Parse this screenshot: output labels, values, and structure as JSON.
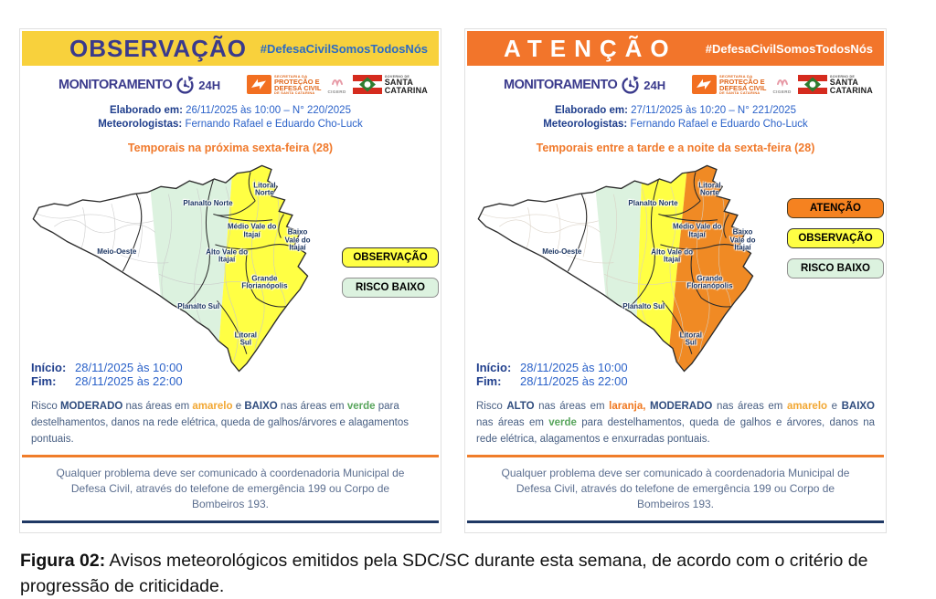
{
  "caption": {
    "label": "Figura 02:",
    "text": " Avisos meteorológicos emitidos pela SDC/SC durante esta semana, de acordo com o critério de progressão de criticidade."
  },
  "shared": {
    "hashtag": "#DefesaCivilSomosTodosNós",
    "monitoring": {
      "word": "MONITORAMENTO",
      "hours": "24H"
    },
    "logos": {
      "defesa_civil": {
        "line1": "SECRETARIA DA",
        "line2": "PROTEÇÃO E",
        "line3": "DEFESA CIVIL",
        "line4": "DE SANTA CATARINA"
      },
      "cigerd": "CIGERD",
      "governo": {
        "line1": "GOVERNO DE",
        "line2": "SANTA",
        "line3": "CATARINA"
      }
    },
    "labels": {
      "elaborado": "Elaborado em:",
      "meteorologistas": "Meteorologistas:",
      "inicio": "Início:",
      "fim": "Fim:"
    },
    "meteorologists": "Fernando Rafael e Eduardo Cho-Luck",
    "inicio_value": "28/11/2025 às 10:00",
    "fim_value": "28/11/2025 às 22:00",
    "contact": "Qualquer problema deve ser comunicado à coordenadoria Municipal de Defesa Civil, através do telefone de emergência 199 ou Corpo de Bombeiros 193.",
    "map_labels": {
      "planalto_norte": "Planalto Norte",
      "litoral_norte": "Litoral Norte",
      "medio_vale": "Médio Vale do Itajaí",
      "baixo_vale": "Baixo Vale do Itajaí",
      "alto_vale": "Alto Vale do Itajaí",
      "meio_oeste": "Meio-Oeste",
      "grande_florianopolis": "Grande Florianópolis",
      "planalto_sul": "Planalto Sul",
      "litoral_sul": "Litoral Sul"
    }
  },
  "panels": [
    {
      "title": "OBSERVAÇÃO",
      "elaborado_value": "26/11/2025 às 10:00 – N° 220/2025",
      "event_title": "Temporais na próxima sexta-feira (28)",
      "legend": [
        "OBSERVAÇÃO",
        "RISCO BAIXO"
      ],
      "risk_segments": [
        {
          "t": "Risco ",
          "c": "n"
        },
        {
          "t": "MODERADO",
          "c": "b"
        },
        {
          "t": " nas áreas em ",
          "c": "n"
        },
        {
          "t": "amarelo",
          "c": "yellow"
        },
        {
          "t": " e ",
          "c": "n"
        },
        {
          "t": "BAIXO",
          "c": "b"
        },
        {
          "t": " nas áreas em ",
          "c": "n"
        },
        {
          "t": "verde",
          "c": "green"
        },
        {
          "t": " para destelhamentos, danos na rede elétrica, queda de galhos/árvores e alagamentos pontuais.",
          "c": "n"
        }
      ]
    },
    {
      "title": "ATENÇÃO",
      "elaborado_value": "27/11/2025 às 10:20 – N° 221/2025",
      "event_title": "Temporais entre a tarde e a noite da sexta-feira (28)",
      "legend": [
        "ATENÇÃO",
        "OBSERVAÇÃO",
        "RISCO BAIXO"
      ],
      "risk_segments": [
        {
          "t": "Risco ",
          "c": "n"
        },
        {
          "t": "ALTO",
          "c": "b"
        },
        {
          "t": " nas áreas em ",
          "c": "n"
        },
        {
          "t": "laranja,",
          "c": "orange"
        },
        {
          "t": " ",
          "c": "n"
        },
        {
          "t": "MODERADO",
          "c": "b"
        },
        {
          "t": " nas áreas em ",
          "c": "n"
        },
        {
          "t": "amarelo",
          "c": "yellow"
        },
        {
          "t": " e ",
          "c": "n"
        },
        {
          "t": "BAIXO",
          "c": "b"
        },
        {
          "t": " nas áreas em ",
          "c": "n"
        },
        {
          "t": "verde",
          "c": "green"
        },
        {
          "t": " para destelhamentos, queda de galhos e árvores, danos na rede elétrica, alagamentos e enxurradas pontuais.",
          "c": "n"
        }
      ]
    }
  ],
  "colors": {
    "banner_yellow": "#F8D13C",
    "banner_orange": "#F2752B",
    "banner_title_navy": "#3A3A8C",
    "hashtag_blue": "#2B6BC4",
    "map_yellow": "#FFFF44",
    "map_green": "#DCF2DF",
    "map_orange": "#F08A24",
    "legend_orange": "#F58220",
    "navy_label": "#1F3E8C",
    "value_blue": "#2B62C9",
    "event_title_orange": "#F0792B",
    "divider_orange": "#F07D2A",
    "bottom_line_navy": "#1F3864",
    "contact_gray": "#5B6E8F",
    "flag_red": "#D52B1E",
    "flag_green": "#2E7D32"
  }
}
